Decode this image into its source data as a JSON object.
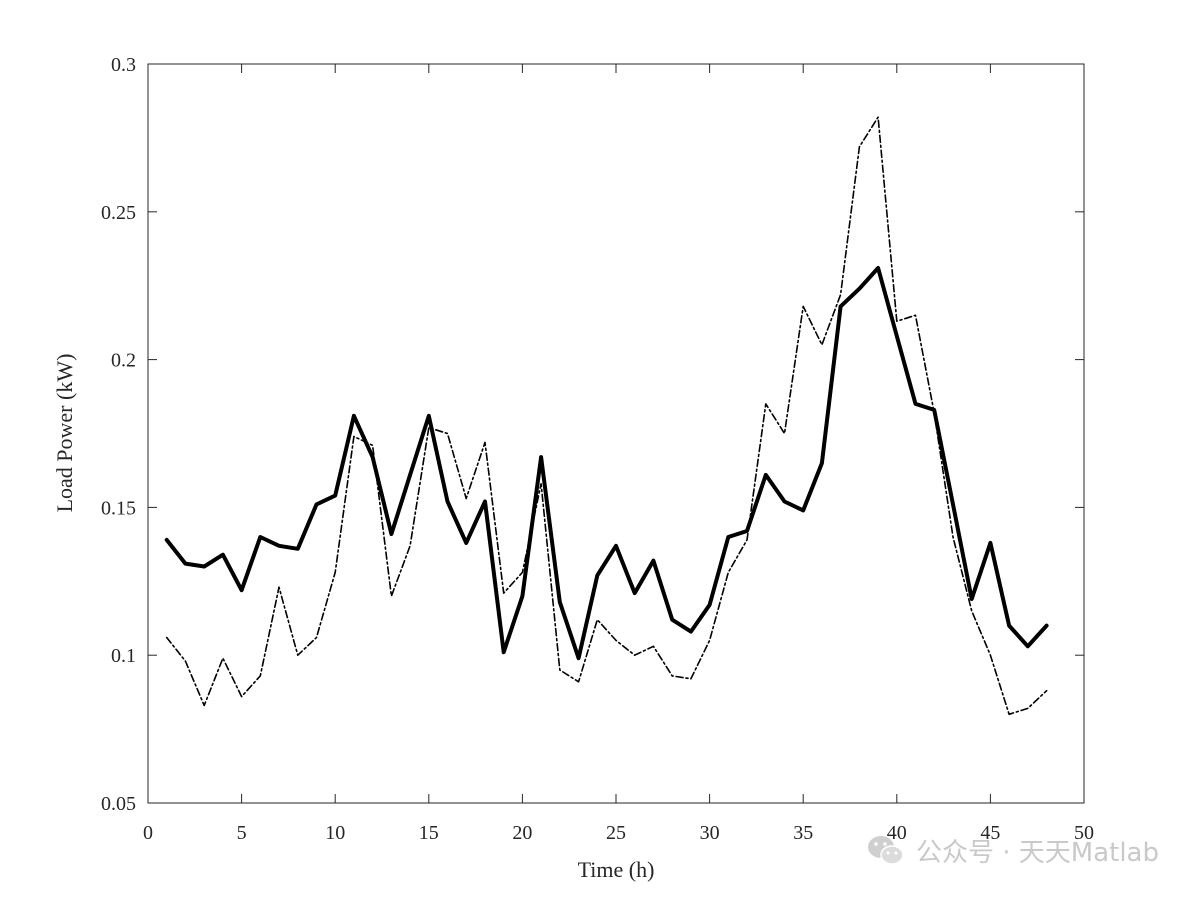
{
  "chart_data": {
    "type": "line",
    "xlabel": "Time (h)",
    "ylabel": "Load Power (kW)",
    "xlim": [
      0,
      50
    ],
    "ylim": [
      0.05,
      0.3
    ],
    "x_ticks": [
      "0",
      "5",
      "10",
      "15",
      "20",
      "25",
      "30",
      "35",
      "40",
      "45",
      "50"
    ],
    "y_ticks": [
      "0.05",
      "0.1",
      "0.15",
      "0.2",
      "0.25",
      "0.3"
    ],
    "grid": false,
    "x": [
      1,
      2,
      3,
      4,
      5,
      6,
      7,
      8,
      9,
      10,
      11,
      12,
      13,
      14,
      15,
      16,
      17,
      18,
      19,
      20,
      21,
      22,
      23,
      24,
      25,
      26,
      27,
      28,
      29,
      30,
      31,
      32,
      33,
      34,
      35,
      36,
      37,
      38,
      39,
      40,
      41,
      42,
      43,
      44,
      45,
      46,
      47,
      48
    ],
    "series": [
      {
        "style": "solid-thick",
        "color": "#000000",
        "values": [
          0.139,
          0.131,
          0.13,
          0.134,
          0.122,
          0.14,
          0.137,
          0.136,
          0.151,
          0.154,
          0.181,
          0.167,
          0.141,
          0.161,
          0.181,
          0.152,
          0.138,
          0.152,
          0.101,
          0.12,
          0.167,
          0.118,
          0.099,
          0.127,
          0.137,
          0.121,
          0.132,
          0.112,
          0.108,
          0.117,
          0.14,
          0.142,
          0.161,
          0.152,
          0.149,
          0.165,
          0.218,
          0.224,
          0.231,
          0.208,
          0.185,
          0.183,
          0.151,
          0.119,
          0.138,
          0.11,
          0.103,
          0.11
        ]
      },
      {
        "style": "dash-dot",
        "color": "#000000",
        "values": [
          0.106,
          0.098,
          0.083,
          0.099,
          0.086,
          0.093,
          0.123,
          0.1,
          0.106,
          0.128,
          0.174,
          0.171,
          0.12,
          0.137,
          0.177,
          0.175,
          0.153,
          0.172,
          0.121,
          0.128,
          0.158,
          0.095,
          0.091,
          0.112,
          0.105,
          0.1,
          0.103,
          0.093,
          0.092,
          0.105,
          0.128,
          0.139,
          0.185,
          0.175,
          0.218,
          0.205,
          0.222,
          0.272,
          0.282,
          0.213,
          0.215,
          0.182,
          0.14,
          0.115,
          0.1,
          0.08,
          0.082,
          0.088
        ]
      }
    ]
  },
  "watermark": {
    "text": "公众号 · 天天Matlab",
    "color": "#c9c9c9",
    "icon": "wechat-icon"
  }
}
